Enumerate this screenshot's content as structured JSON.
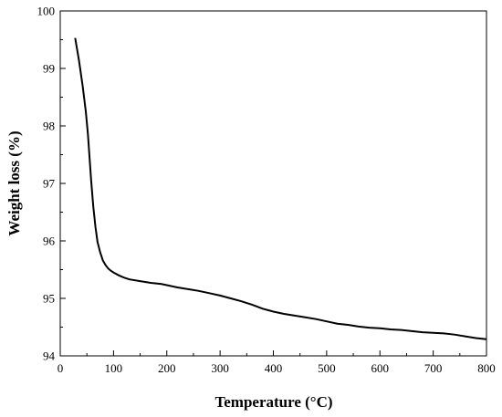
{
  "chart_data": {
    "type": "line",
    "title": "",
    "xlabel": "Temperature (°C)",
    "ylabel": "Weight loss (%)",
    "xlim": [
      0,
      800
    ],
    "ylim": [
      94,
      100
    ],
    "xticks": [
      0,
      100,
      200,
      300,
      400,
      500,
      600,
      700,
      800
    ],
    "yticks": [
      94,
      95,
      96,
      97,
      98,
      99,
      100
    ],
    "grid": false,
    "legend": "none",
    "line_color": "#000000",
    "series": [
      {
        "x": [
          28,
          35,
          42,
          48,
          52,
          55,
          58,
          62,
          66,
          70,
          75,
          80,
          85,
          90,
          95,
          100,
          110,
          120,
          130,
          150,
          170,
          190,
          200,
          220,
          240,
          260,
          280,
          300,
          320,
          340,
          360,
          380,
          400,
          420,
          440,
          460,
          480,
          500,
          520,
          540,
          560,
          580,
          600,
          620,
          640,
          660,
          680,
          700,
          720,
          740,
          760,
          780,
          800
        ],
        "y": [
          99.53,
          99.15,
          98.7,
          98.25,
          97.85,
          97.45,
          97.05,
          96.6,
          96.25,
          95.98,
          95.8,
          95.66,
          95.58,
          95.52,
          95.48,
          95.45,
          95.4,
          95.36,
          95.33,
          95.3,
          95.27,
          95.25,
          95.23,
          95.19,
          95.16,
          95.13,
          95.09,
          95.05,
          95.0,
          94.95,
          94.89,
          94.82,
          94.77,
          94.73,
          94.7,
          94.67,
          94.64,
          94.6,
          94.56,
          94.54,
          94.51,
          94.49,
          94.48,
          94.46,
          94.45,
          94.43,
          94.41,
          94.4,
          94.39,
          94.37,
          94.34,
          94.31,
          94.29
        ]
      }
    ]
  }
}
